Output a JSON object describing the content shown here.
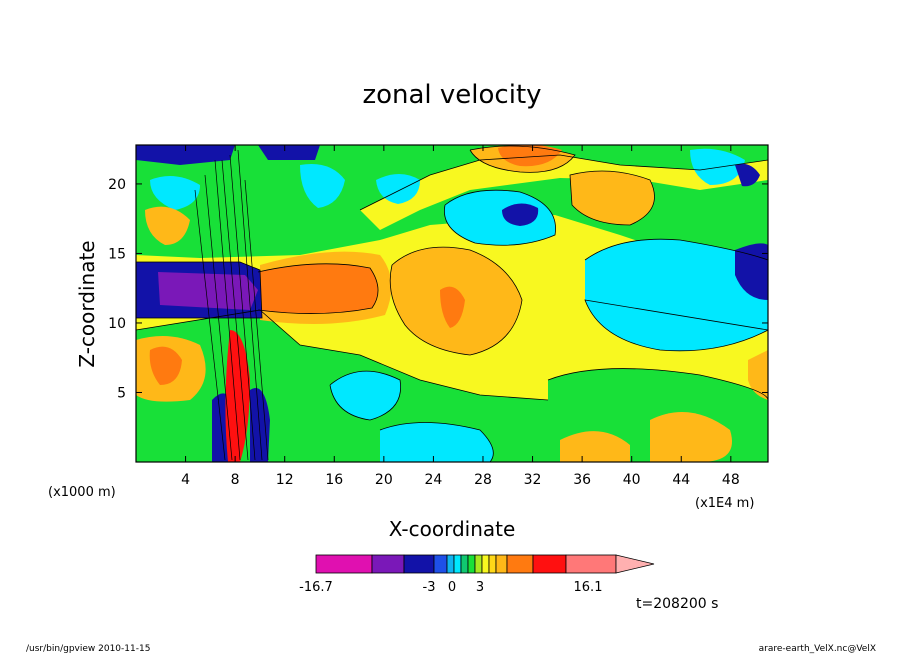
{
  "chart_data": {
    "type": "heatmap",
    "title": "zonal velocity",
    "xlabel": "X-coordinate",
    "ylabel": "Z-coordinate",
    "x_unit_label": "(x1E4 m)",
    "y_unit_label": "(x1000 m)",
    "xlim": [
      0,
      51
    ],
    "ylim": [
      0,
      22.8
    ],
    "x_ticks": [
      4,
      8,
      12,
      16,
      20,
      24,
      28,
      32,
      36,
      40,
      44,
      48
    ],
    "y_ticks": [
      5,
      10,
      15,
      20
    ],
    "colorbar": {
      "min_label": "-16.7",
      "max_label": "16.1",
      "labels": [
        "-3",
        "0",
        "3"
      ],
      "segments": [
        {
          "value": -16.7,
          "color": "#e010b0"
        },
        {
          "value": -13.0,
          "color": "#7a18b8"
        },
        {
          "value": -9.0,
          "color": "#1212a8"
        },
        {
          "value": -5.0,
          "color": "#1e50e8"
        },
        {
          "value": -3.0,
          "color": "#10b4f0"
        },
        {
          "value": -2.0,
          "color": "#00e8ff"
        },
        {
          "value": -1.0,
          "color": "#10c870"
        },
        {
          "value": 0.0,
          "color": "#18e038"
        },
        {
          "value": 1.0,
          "color": "#a8e820"
        },
        {
          "value": 2.0,
          "color": "#f8f820"
        },
        {
          "value": 3.0,
          "color": "#ffd818"
        },
        {
          "value": 4.0,
          "color": "#ffb818"
        },
        {
          "value": 5.0,
          "color": "#ff7a10"
        },
        {
          "value": 9.0,
          "color": "#ff1010"
        },
        {
          "value": 13.0,
          "color": "#ff7878"
        }
      ],
      "extend_color": "#ffb0b0"
    },
    "grid": false
  },
  "time_label": "t=208200 s",
  "footer": {
    "left": "/usr/bin/gpview   2010-11-15",
    "right": "arare-earth_VelX.nc@VelX"
  }
}
